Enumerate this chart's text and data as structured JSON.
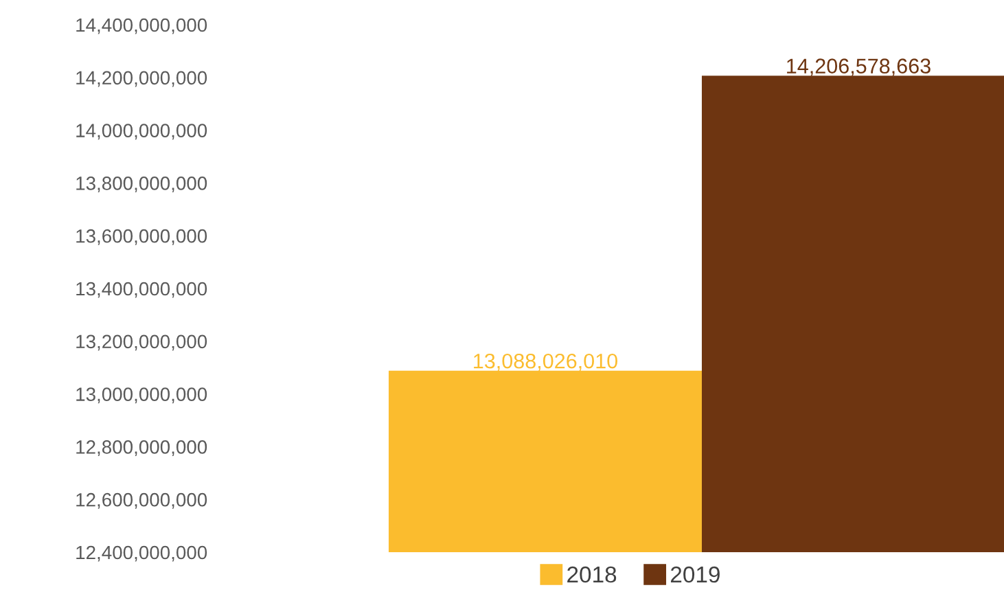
{
  "chart_data": {
    "type": "bar",
    "categories": [
      null
    ],
    "series": [
      {
        "name": "2018",
        "color": "#fbbc2e",
        "values": [
          13088026010
        ],
        "value_labels": [
          "13,088,026,010"
        ]
      },
      {
        "name": "2019",
        "color": "#6e3511",
        "values": [
          14206578663
        ],
        "value_labels": [
          "14,206,578,663"
        ]
      }
    ],
    "ylim": [
      12400000000,
      14400000000
    ],
    "yticks": [
      {
        "value": 12400000000,
        "label": "12,400,000,000"
      },
      {
        "value": 12600000000,
        "label": "12,600,000,000"
      },
      {
        "value": 12800000000,
        "label": "12,800,000,000"
      },
      {
        "value": 13000000000,
        "label": "13,000,000,000"
      },
      {
        "value": 13200000000,
        "label": "13,200,000,000"
      },
      {
        "value": 13400000000,
        "label": "13,400,000,000"
      },
      {
        "value": 13600000000,
        "label": "13,600,000,000"
      },
      {
        "value": 13800000000,
        "label": "13,800,000,000"
      },
      {
        "value": 14000000000,
        "label": "14,000,000,000"
      },
      {
        "value": 14200000000,
        "label": "14,200,000,000"
      },
      {
        "value": 14400000000,
        "label": "14,400,000,000"
      }
    ],
    "grid": false,
    "legend": "bottom"
  }
}
